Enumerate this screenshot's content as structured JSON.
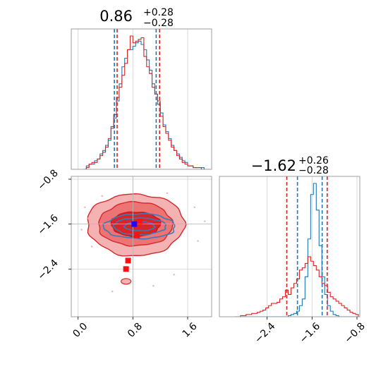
{
  "chart_data": [
    {
      "type": "histogram",
      "panel": "top-left",
      "title_value": "0.86",
      "title_plus": "+0.28",
      "title_minus": "−0.28",
      "xlim": [
        -0.1,
        1.95
      ],
      "bin_centers": [
        0.1,
        0.14,
        0.18,
        0.22,
        0.26,
        0.3,
        0.34,
        0.38,
        0.42,
        0.46,
        0.5,
        0.54,
        0.58,
        0.62,
        0.66,
        0.7,
        0.74,
        0.78,
        0.82,
        0.86,
        0.9,
        0.94,
        0.98,
        1.02,
        1.06,
        1.1,
        1.14,
        1.18,
        1.22,
        1.26,
        1.3,
        1.34,
        1.38,
        1.42,
        1.46,
        1.5,
        1.54,
        1.58,
        1.62,
        1.66,
        1.7,
        1.74,
        1.78,
        1.82,
        1.86,
        1.9
      ],
      "series": [
        {
          "color": "#1f77b4",
          "values": [
            0,
            2,
            3,
            3,
            5,
            6,
            9,
            11,
            14,
            17,
            25,
            30,
            40,
            50,
            60,
            65,
            70,
            70,
            72,
            74,
            75,
            73,
            70,
            64,
            58,
            50,
            44,
            38,
            33,
            26,
            22,
            18,
            14,
            11,
            9,
            7,
            5,
            4,
            2,
            2,
            1,
            1,
            1,
            1,
            0,
            0
          ]
        },
        {
          "color": "#d62728",
          "values": [
            0,
            1,
            3,
            4,
            4,
            6,
            8,
            10,
            13,
            18,
            24,
            32,
            42,
            48,
            55,
            62,
            70,
            78,
            74,
            75,
            76,
            77,
            66,
            60,
            56,
            48,
            44,
            40,
            31,
            25,
            21,
            17,
            13,
            11,
            8,
            6,
            4,
            3,
            2,
            2,
            1,
            1,
            1,
            0,
            0,
            0
          ]
        }
      ],
      "quantile_lines": [
        {
          "color": "#1f77b4",
          "x": [
            0.53,
            1.14
          ]
        },
        {
          "color": "#d62728",
          "x": [
            0.57,
            1.19
          ]
        }
      ]
    },
    {
      "type": "contour",
      "panel": "bottom-left",
      "x_ticks": [
        "0.0",
        "0.8",
        "1.6"
      ],
      "y_ticks": [
        "−0.8",
        "−1.6",
        "−2.4"
      ],
      "xlim": [
        -0.1,
        1.95
      ],
      "ylim": [
        -3.25,
        -0.75
      ],
      "grid": true,
      "crosshair": {
        "x": 0.8,
        "y": -1.6
      },
      "red_levels": [
        {
          "cx": 0.84,
          "cy": -1.61,
          "rx": 0.71,
          "ry": 0.55,
          "fill": "#f5b2b2",
          "stroke": "#d62728"
        },
        {
          "cx": 0.84,
          "cy": -1.6,
          "rx": 0.54,
          "ry": 0.39,
          "fill": "#ec7474",
          "stroke": "#d62728"
        },
        {
          "cx": 0.84,
          "cy": -1.6,
          "rx": 0.36,
          "ry": 0.22,
          "fill": "#d82528",
          "stroke": "#c51a1a"
        }
      ],
      "blue_levels": [
        {
          "cx": 0.9,
          "cy": -1.64,
          "rx": 0.52,
          "ry": 0.22
        },
        {
          "cx": 0.9,
          "cy": -1.64,
          "rx": 0.38,
          "ry": 0.15
        },
        {
          "cx": 0.9,
          "cy": -1.64,
          "rx": 0.22,
          "ry": 0.08
        }
      ],
      "red_squares": [
        [
          0.9,
          -1.55
        ],
        [
          0.86,
          -1.8
        ],
        [
          0.73,
          -2.25
        ],
        [
          0.7,
          -2.4
        ]
      ],
      "blue_square": [
        0.82,
        -1.6
      ],
      "red_blob": [
        0.7,
        -2.62
      ]
    },
    {
      "type": "histogram",
      "panel": "bottom-right",
      "title_value": "−1.62",
      "title_plus": "+0.26",
      "title_minus": "−0.28",
      "x_ticks": [
        "−2.4",
        "−1.6",
        "−0.8"
      ],
      "xlim": [
        -3.25,
        -0.75
      ],
      "bin_centers": [
        -2.95,
        -2.9,
        -2.85,
        -2.8,
        -2.75,
        -2.7,
        -2.65,
        -2.6,
        -2.55,
        -2.5,
        -2.45,
        -2.4,
        -2.35,
        -2.3,
        -2.25,
        -2.2,
        -2.15,
        -2.1,
        -2.05,
        -2.0,
        -1.95,
        -1.9,
        -1.85,
        -1.8,
        -1.75,
        -1.7,
        -1.65,
        -1.6,
        -1.55,
        -1.5,
        -1.45,
        -1.4,
        -1.35,
        -1.3,
        -1.25,
        -1.2,
        -1.15,
        -1.1,
        -1.05,
        -1.0,
        -0.95,
        -0.9,
        -0.85,
        -0.8
      ],
      "series": [
        {
          "color": "#1f77b4",
          "values": [
            0,
            0,
            0,
            0,
            0,
            0,
            0,
            0,
            0,
            0,
            0,
            0,
            0,
            0,
            0,
            0,
            0,
            0,
            0,
            1,
            2,
            3,
            5,
            10,
            16,
            36,
            70,
            110,
            120,
            96,
            64,
            36,
            20,
            10,
            5,
            2,
            1,
            0,
            0,
            0,
            0,
            0,
            0,
            0
          ]
        },
        {
          "color": "#d62728",
          "values": [
            0,
            0,
            1,
            1,
            2,
            2,
            3,
            3,
            4,
            5,
            6,
            8,
            10,
            12,
            12,
            13,
            16,
            18,
            24,
            20,
            26,
            30,
            34,
            42,
            44,
            48,
            54,
            50,
            46,
            42,
            36,
            30,
            28,
            22,
            18,
            16,
            14,
            12,
            10,
            8,
            6,
            4,
            3,
            2
          ]
        }
      ],
      "quantile_lines": [
        {
          "color": "#d62728",
          "x": [
            -2.05,
            -1.33
          ]
        },
        {
          "color": "#1f77b4",
          "x": [
            -1.86,
            -1.42
          ]
        }
      ]
    }
  ],
  "x_ticks_left": [
    "0.0",
    "0.8",
    "1.6"
  ]
}
